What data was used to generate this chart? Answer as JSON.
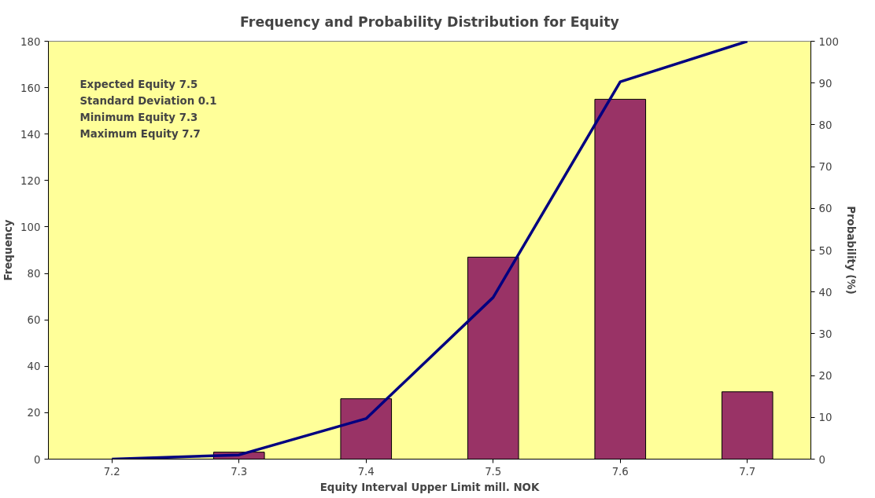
{
  "chart_data": {
    "type": "bar",
    "title": "Frequency and Probability Distribution for Equity",
    "xlabel": "Equity Interval Upper Limit mill. NOK",
    "ylabel": "Frequency",
    "y2label": "Probability (%)",
    "categories": [
      "7.2",
      "7.3",
      "7.4",
      "7.5",
      "7.6",
      "7.7"
    ],
    "series": [
      {
        "color": "#993366",
        "values": [
          0,
          3,
          26,
          87,
          155,
          29
        ]
      },
      {
        "type": "line",
        "axis": "y2",
        "color": "#000080",
        "values": [
          0,
          1,
          9.7,
          38.7,
          90.3,
          100
        ]
      }
    ],
    "ylim": [
      0,
      180
    ],
    "yticks": [
      0,
      20,
      40,
      60,
      80,
      100,
      120,
      140,
      160,
      180
    ],
    "y2lim": [
      0,
      100
    ],
    "y2ticks": [
      0,
      10,
      20,
      30,
      40,
      50,
      60,
      70,
      80,
      90,
      100
    ],
    "annotations": [
      "Expected Equity 7.5",
      "Standard Deviation 0.1",
      "Minimum Equity 7.3",
      "Maximum Equity 7.7"
    ],
    "grid": false,
    "marker": "none",
    "line_style": "solid"
  }
}
